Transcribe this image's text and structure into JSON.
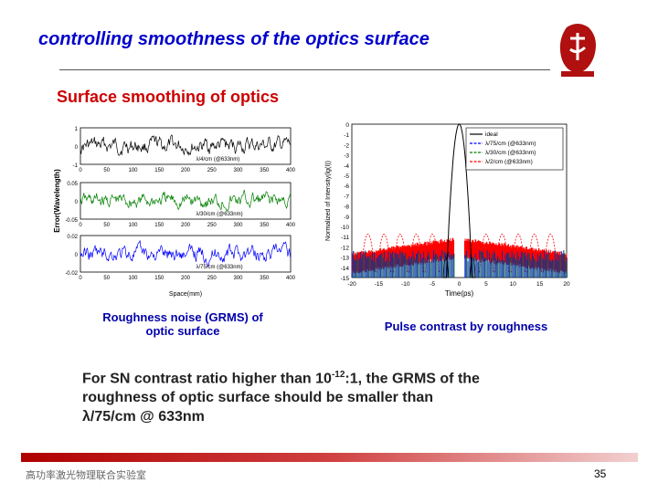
{
  "slide": {
    "title": "controlling smoothness of the optics surface",
    "subtitle": "Surface smoothing of optics",
    "left_caption_line1": "Roughness noise (GRMS) of",
    "left_caption_line2": "optic surface",
    "right_caption": "Pulse contrast by roughness",
    "body_line1_pre": "For SN contrast ratio higher than 10",
    "body_line1_sup": "-12",
    "body_line1_post": ":1, the GRMS of the",
    "body_line2": "roughness of optic surface should be smaller than",
    "body_line3": "λ/75/cm @ 633nm",
    "footer_text": "高功率激光物理联合实验室",
    "page_number": "35",
    "colors": {
      "title": "#0000cc",
      "subtitle": "#cc0000",
      "caption": "#0000aa",
      "footer_bar": "#b00000"
    }
  },
  "chart_data": [
    {
      "type": "line",
      "xlabel": "Space(mm)",
      "ylabel": "Error(Wavelength)",
      "x_ticks": [
        "0",
        "50",
        "100",
        "150",
        "200",
        "250",
        "300",
        "350",
        "400"
      ],
      "panels": [
        {
          "annotation": "λ/4/cm (@633nm)",
          "color": "#000000",
          "y_ticks": [
            "1",
            "0",
            "-1"
          ],
          "ylim": [
            -1,
            1
          ]
        },
        {
          "annotation": "λ/30/cm (@633nm)",
          "color": "#008000",
          "y_ticks": [
            "0.05",
            "0",
            "-0.05"
          ],
          "ylim": [
            -0.05,
            0.05
          ]
        },
        {
          "annotation": "λ/75/cm (@633nm)",
          "color": "#0000ff",
          "y_ticks": [
            "0.02",
            "0",
            "-0.02"
          ],
          "ylim": [
            -0.02,
            0.02
          ]
        }
      ]
    },
    {
      "type": "line",
      "xlabel": "Time(ps)",
      "ylabel": "Normalized of Intensity(lg(I))",
      "x_ticks": [
        "-20",
        "-15",
        "-10",
        "-5",
        "0",
        "5",
        "10",
        "15",
        "20"
      ],
      "y_ticks": [
        "0",
        "-1",
        "-2",
        "-3",
        "-4",
        "-5",
        "-6",
        "-7",
        "-8",
        "-9",
        "-10",
        "-11",
        "-12",
        "-13",
        "-14",
        "-15"
      ],
      "xlim": [
        -20,
        20
      ],
      "ylim": [
        -15,
        0
      ],
      "legend": [
        {
          "name": "ideal",
          "color": "#000000"
        },
        {
          "name": "λ/75/cm (@633nm)",
          "color": "#0000ff"
        },
        {
          "name": "λ/30/cm (@633nm)",
          "color": "#008000"
        },
        {
          "name": "λ/2/cm (@633nm)",
          "color": "#ff0000"
        }
      ]
    }
  ]
}
